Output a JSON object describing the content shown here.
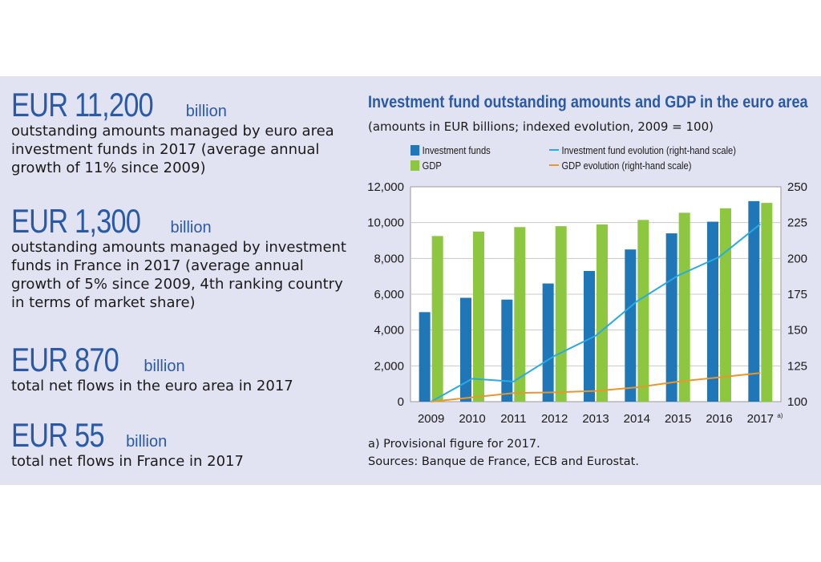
{
  "stats": [
    {
      "value": "EUR 11,200",
      "unit": "billion",
      "lines": [
        "outstanding amounts managed by euro area",
        "investment funds in 2017 (average annual",
        "growth of 11% since 2009)"
      ]
    },
    {
      "value": "EUR 1,300",
      "unit": "billion",
      "lines": [
        "outstanding amounts managed by investment",
        "funds in France in 2017 (average annual",
        "growth of 5% since 2009, 4th ranking country",
        "in terms of market share)"
      ]
    },
    {
      "value": "EUR 870",
      "unit": "billion",
      "lines": [
        "total net flows in the euro area in 2017"
      ]
    },
    {
      "value": "EUR 55",
      "unit": "billion",
      "lines": [
        "total net flows in France in 2017"
      ]
    }
  ],
  "chart_data": {
    "type": "bar",
    "title": "Investment fund outstanding amounts and GDP in the euro area",
    "subtitle": "(amounts in EUR billions; indexed evolution, 2009 = 100)",
    "categories": [
      "2009",
      "2010",
      "2011",
      "2012",
      "2013",
      "2014",
      "2015",
      "2016",
      "2017"
    ],
    "category_note": "a)",
    "left_axis": {
      "ylim": [
        0,
        12000
      ],
      "ticks": [
        "0",
        "2,000",
        "4,000",
        "6,000",
        "8,000",
        "10,000",
        "12,000"
      ]
    },
    "right_axis": {
      "ylim": [
        100,
        250
      ],
      "ticks": [
        "100",
        "125",
        "150",
        "175",
        "200",
        "225",
        "250"
      ]
    },
    "series": [
      {
        "name": "Investment funds",
        "type": "bar",
        "axis": "left",
        "color": "#1f77b8",
        "values": [
          5000,
          5800,
          5700,
          6600,
          7300,
          8500,
          9400,
          10050,
          11200
        ]
      },
      {
        "name": "GDP",
        "type": "bar",
        "axis": "left",
        "color": "#8dc63f",
        "values": [
          9250,
          9500,
          9750,
          9800,
          9900,
          10150,
          10550,
          10800,
          11100
        ]
      },
      {
        "name": "Investment fund evolution (right-hand scale)",
        "type": "line",
        "axis": "right",
        "color": "#29abe2",
        "values": [
          100,
          116,
          114,
          132,
          146,
          170,
          188,
          201,
          224
        ]
      },
      {
        "name": "GDP evolution (right-hand scale)",
        "type": "line",
        "axis": "right",
        "color": "#e8962e",
        "values": [
          100,
          103,
          106,
          106.5,
          107.5,
          110,
          114,
          117,
          120
        ]
      }
    ]
  },
  "notes": {
    "provisional": "a) Provisional figure for 2017.",
    "sources": "Sources: Banque de France, ECB and Eurostat."
  }
}
